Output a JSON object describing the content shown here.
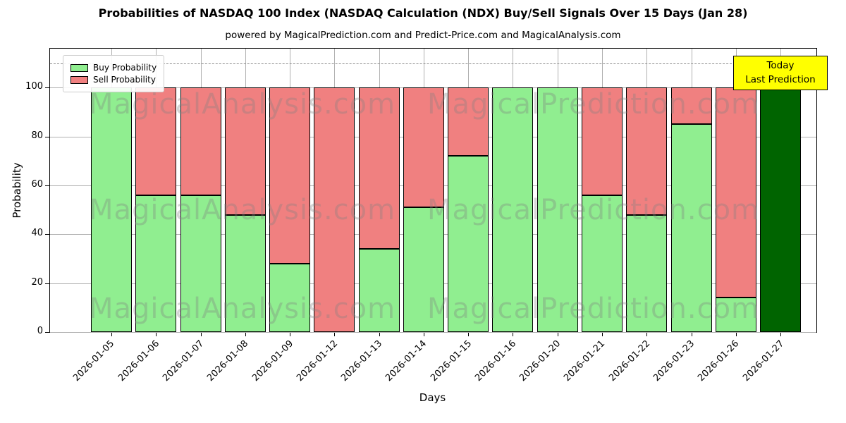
{
  "title": "Probabilities of NASDAQ 100 Index (NASDAQ Calculation (NDX) Buy/Sell Signals Over 15 Days (Jan 28)",
  "subtitle": "powered by MagicalPrediction.com and Predict-Price.com and MagicalAnalysis.com",
  "chart_data": {
    "type": "bar",
    "stacked": true,
    "title": "Probabilities of NASDAQ 100 Index (NASDAQ Calculation (NDX) Buy/Sell Signals Over 15 Days (Jan 28)",
    "xlabel": "Days",
    "ylabel": "Probability",
    "categories": [
      "2026-01-05",
      "2026-01-06",
      "2026-01-07",
      "2026-01-08",
      "2026-01-09",
      "2026-01-12",
      "2026-01-13",
      "2026-01-14",
      "2026-01-15",
      "2026-01-16",
      "2026-01-20",
      "2026-01-21",
      "2026-01-22",
      "2026-01-23",
      "2026-01-26",
      "2026-01-27"
    ],
    "series": [
      {
        "name": "Buy Probability",
        "color": "#90EE90",
        "values": [
          100,
          56,
          56,
          48,
          28,
          0,
          34,
          51,
          72,
          100,
          100,
          56,
          48,
          85,
          14,
          100
        ]
      },
      {
        "name": "Sell Probability",
        "color": "#F08080",
        "values": [
          0,
          44,
          44,
          52,
          72,
          100,
          66,
          49,
          28,
          0,
          0,
          44,
          52,
          15,
          86,
          0
        ]
      }
    ],
    "last_bar_color": "#006400",
    "yticks": [
      0,
      20,
      40,
      60,
      80,
      100
    ],
    "ylim": [
      0,
      116
    ],
    "dashed_line_y": 110,
    "grid": true,
    "legend_position": "upper-left",
    "bar_edge_color": "#000000"
  },
  "annotation": {
    "line1": "Today",
    "line2": "Last Prediction",
    "bg": "#FFFF00"
  },
  "watermarks": {
    "left": "MagicalAnalysis.com",
    "right": "MagicalPrediction.com"
  }
}
